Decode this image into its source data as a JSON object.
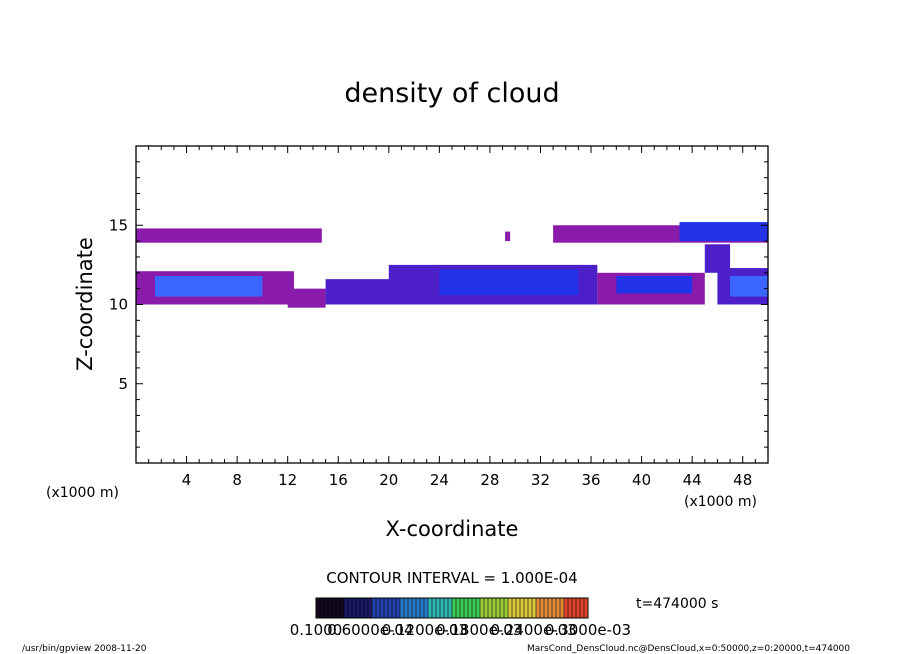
{
  "chart_data": {
    "type": "heatmap",
    "title": "density of cloud",
    "xlabel": "X-coordinate",
    "ylabel": "Z-coordinate",
    "x_unit": "(x1000 m)",
    "z_unit": "(x1000 m)",
    "xlim": [
      0,
      50
    ],
    "ylim": [
      0,
      20
    ],
    "x_ticks": [
      4,
      8,
      12,
      16,
      20,
      24,
      28,
      32,
      36,
      40,
      44,
      48
    ],
    "y_ticks": [
      5,
      10,
      15
    ],
    "x_minor_step": 1,
    "y_minor_step": 1,
    "grid": false,
    "cloud_regions": [
      {
        "x": [
          0,
          14.7
        ],
        "z": [
          13.9,
          14.8
        ],
        "level": 0.3
      },
      {
        "x": [
          29.2,
          29.6
        ],
        "z": [
          14.0,
          14.6
        ],
        "level": 0.3
      },
      {
        "x": [
          33.0,
          50
        ],
        "z": [
          13.9,
          15.0
        ],
        "level": 0.35
      },
      {
        "x": [
          43.0,
          50
        ],
        "z": [
          14.0,
          15.2
        ],
        "level": 0.6
      },
      {
        "x": [
          0,
          12.5
        ],
        "z": [
          10.0,
          12.1
        ],
        "level": 0.35
      },
      {
        "x": [
          1.5,
          10.0
        ],
        "z": [
          10.5,
          11.8
        ],
        "level": 0.75
      },
      {
        "x": [
          12.0,
          15.0
        ],
        "z": [
          9.8,
          11.0
        ],
        "level": 0.3
      },
      {
        "x": [
          15.0,
          21.0
        ],
        "z": [
          10.0,
          11.6
        ],
        "level": 0.4
      },
      {
        "x": [
          20.0,
          36.5
        ],
        "z": [
          10.0,
          12.5
        ],
        "level": 0.4
      },
      {
        "x": [
          24.0,
          35.0
        ],
        "z": [
          10.6,
          12.2
        ],
        "level": 0.65
      },
      {
        "x": [
          36.5,
          45.0
        ],
        "z": [
          10.0,
          12.0
        ],
        "level": 0.35
      },
      {
        "x": [
          38.0,
          44.0
        ],
        "z": [
          10.7,
          11.8
        ],
        "level": 0.6
      },
      {
        "x": [
          45.0,
          47.0
        ],
        "z": [
          12.0,
          13.8
        ],
        "level": 0.4
      },
      {
        "x": [
          46.0,
          50
        ],
        "z": [
          10.0,
          12.3
        ],
        "level": 0.4
      },
      {
        "x": [
          47.0,
          50
        ],
        "z": [
          10.5,
          11.8
        ],
        "level": 0.75
      }
    ],
    "colors": {
      "low": "#8a1aaa",
      "mid": "#4d1fc8",
      "high": "#2233e8",
      "peak": "#3a66ff"
    }
  },
  "contour_interval_label": "CONTOUR INTERVAL = 1.000E-04",
  "colorbar": {
    "tick_labels": [
      "0.1000",
      "0.6000e-04",
      "0.1200e-03",
      "0.1800e-03",
      "0.2400e-03",
      "0.3000e-03"
    ],
    "colors": [
      "#140a20",
      "#1a1a66",
      "#2244aa",
      "#2a7acc",
      "#2fb6b0",
      "#3fcc55",
      "#9acc3a",
      "#d9c73a",
      "#e08a3a",
      "#e0462e"
    ]
  },
  "time_label": "t=474000 s",
  "footer_left": "/usr/bin/gpview  2008-11-20",
  "footer_right": "MarsCond_DensCloud.nc@DensCloud,x=0:50000,z=0:20000,t=474000"
}
